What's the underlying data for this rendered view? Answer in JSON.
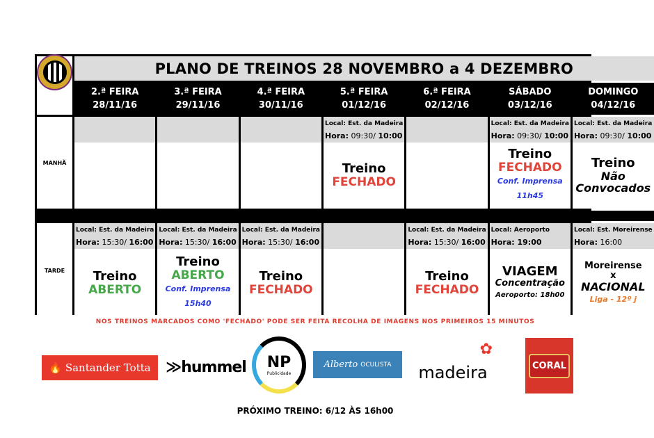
{
  "title": "PLANO DE TREINOS 28 NOVEMBRO a 4 DEZEMBRO",
  "club_logo": "CD Nacional crest",
  "days": [
    {
      "name": "2.ª FEIRA",
      "date": "28/11/16"
    },
    {
      "name": "3.ª FEIRA",
      "date": "29/11/16"
    },
    {
      "name": "4.ª FEIRA",
      "date": "30/11/16"
    },
    {
      "name": "5.ª FEIRA",
      "date": "01/12/16"
    },
    {
      "name": "6.ª FEIRA",
      "date": "02/12/16"
    },
    {
      "name": "SÁBADO",
      "date": "03/12/16"
    },
    {
      "name": "DOMINGO",
      "date": "04/12/16"
    }
  ],
  "rows": [
    {
      "label": "MANHÃ",
      "cells": [
        {
          "info": false,
          "lines": []
        },
        {
          "info": false,
          "lines": []
        },
        {
          "info": false,
          "lines": []
        },
        {
          "info": true,
          "local": "Local: Est. da Madeira",
          "hora_label": "Hora:",
          "hora_time": " 09:30/ ",
          "hora_bold": "10:00",
          "lines": [
            {
              "t": "Treino",
              "s": "main"
            },
            {
              "t": "FECHADO",
              "s": "fech"
            }
          ]
        },
        {
          "info": false,
          "lines": []
        },
        {
          "info": true,
          "local": "Local: Est. da Madeira",
          "hora_label": "Hora:",
          "hora_time": " 09:30/ ",
          "hora_bold": "10:00",
          "lines": [
            {
              "t": "Treino",
              "s": "main"
            },
            {
              "t": "FECHADO",
              "s": "fech"
            },
            {
              "t": "Conf. Imprensa",
              "s": "conf"
            },
            {
              "t": "11h45",
              "s": "conf"
            }
          ]
        },
        {
          "info": true,
          "local": "Local: Est. da Madeira",
          "hora_label": "Hora:",
          "hora_time": " 09:30/ ",
          "hora_bold": "10:00",
          "lines": [
            {
              "t": "Treino",
              "s": "main"
            },
            {
              "t": "Não",
              "s": "ital"
            },
            {
              "t": "Convocados",
              "s": "ital"
            }
          ]
        }
      ]
    },
    {
      "label": "TARDE",
      "cells": [
        {
          "info": true,
          "local": "Local: Est. da Madeira",
          "hora_label": "Hora:",
          "hora_time": " 15:30/ ",
          "hora_bold": "16:00",
          "lines": [
            {
              "t": "Treino",
              "s": "main"
            },
            {
              "t": "ABERTO",
              "s": "aber"
            }
          ]
        },
        {
          "info": true,
          "local": "Local: Est. da Madeira",
          "hora_label": "Hora:",
          "hora_time": " 15:30/ ",
          "hora_bold": "16:00",
          "lines": [
            {
              "t": "Treino",
              "s": "main"
            },
            {
              "t": "ABERTO",
              "s": "aber"
            },
            {
              "t": "Conf. Imprensa",
              "s": "conf"
            },
            {
              "t": "15h40",
              "s": "conf"
            }
          ]
        },
        {
          "info": true,
          "local": "Local: Est. da Madeira",
          "hora_label": "Hora:",
          "hora_time": " 15:30/ ",
          "hora_bold": "16:00",
          "lines": [
            {
              "t": "Treino",
              "s": "main"
            },
            {
              "t": "FECHADO",
              "s": "fech"
            }
          ]
        },
        {
          "info": false,
          "lines": []
        },
        {
          "info": true,
          "local": "Local: Est. da Madeira",
          "hora_label": "Hora:",
          "hora_time": " 15:30/ ",
          "hora_bold": "16:00",
          "lines": [
            {
              "t": "Treino",
              "s": "main"
            },
            {
              "t": "FECHADO",
              "s": "fech"
            }
          ]
        },
        {
          "info": true,
          "local": "Local: Aeroporto",
          "hora_label": "Hora:",
          "hora_time": "",
          "hora_bold": " 19:00",
          "lines": [
            {
              "t": "VIAGEM",
              "s": "main"
            },
            {
              "t": "Concentração",
              "s": "conc"
            },
            {
              "t": "Aeroporto: 18h00",
              "s": "small"
            }
          ]
        },
        {
          "info": true,
          "local": "Local: Est. Moreirense",
          "hora_label": "Hora:",
          "hora_time": " 16:00",
          "hora_bold": "",
          "lines": [
            {
              "t": "Moreirense",
              "s": "mid"
            },
            {
              "t": "x",
              "s": "mid"
            },
            {
              "t": "NACIONAL",
              "s": "ital"
            },
            {
              "t": "Liga - 12º j",
              "s": "liga"
            }
          ]
        }
      ]
    }
  ],
  "note": "NOS TREINOS MARCADOS COMO 'FECHADO' PODE SER FEITA RECOLHA DE IMAGENS NOS PRIMEIROS 15 MINUTOS",
  "sponsors": {
    "santander": "Santander Totta",
    "hummel": "hummel",
    "np": "NP",
    "np_sub": "Publicidade",
    "alberto": "Alberto",
    "alberto_sub": "OCULISTA",
    "madeira": "madeira",
    "coral": "CORAL"
  },
  "next_training": "PRÓXIMO TREINO: 6/12 ÀS 16h00"
}
